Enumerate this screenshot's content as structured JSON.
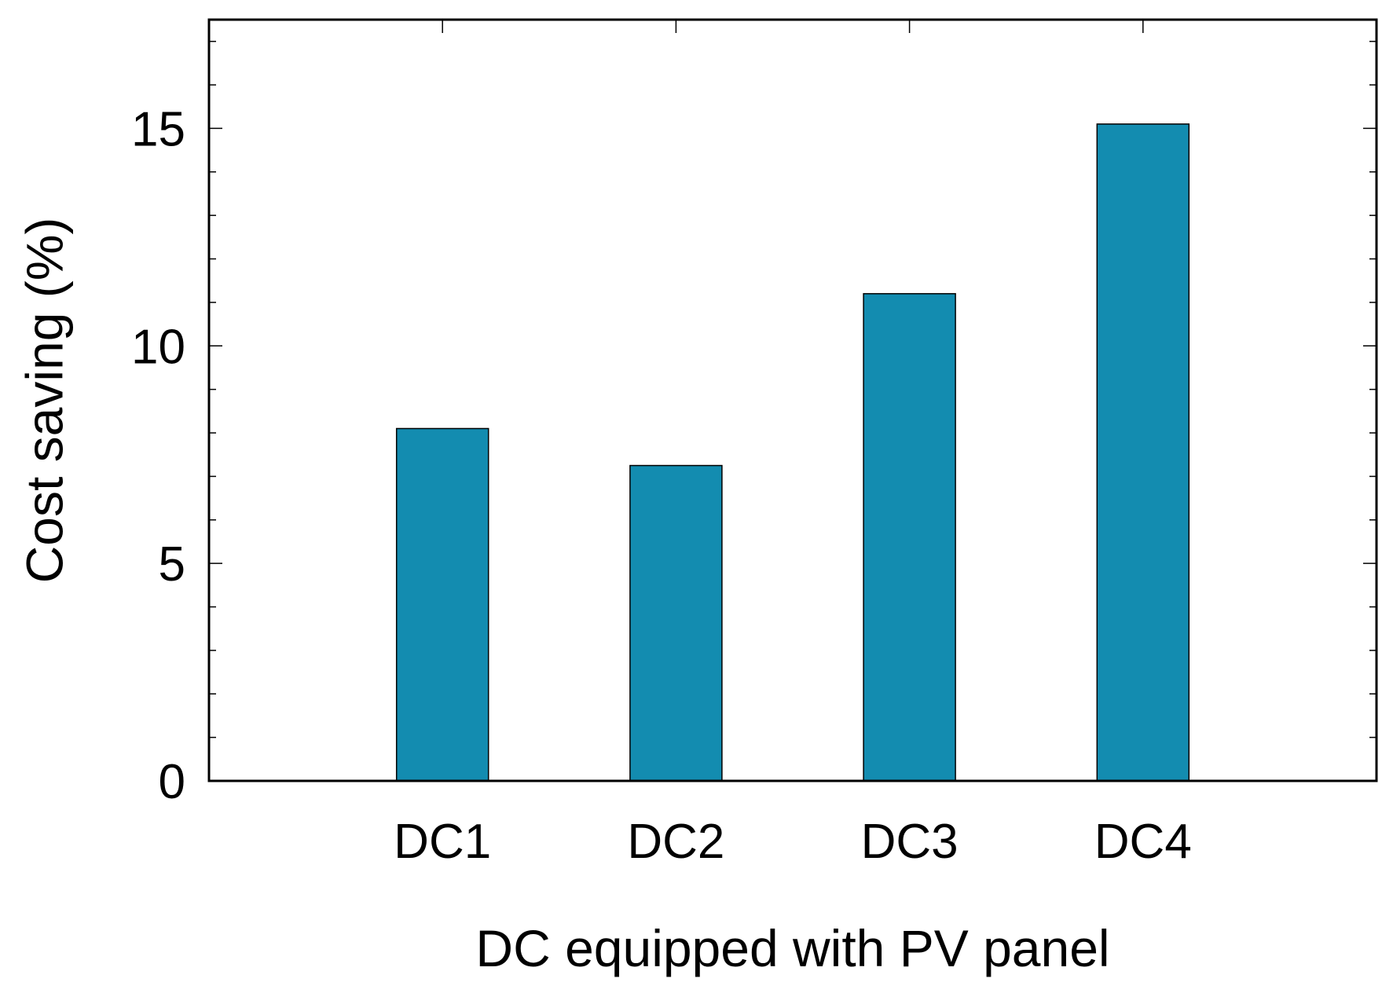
{
  "chart_data": {
    "type": "bar",
    "title": "",
    "xlabel": "DC equipped with PV panel",
    "ylabel": "Cost saving (%)",
    "categories": [
      "DC1",
      "DC2",
      "DC3",
      "DC4"
    ],
    "values": [
      8.1,
      7.25,
      11.2,
      15.1
    ],
    "ylim": [
      0,
      17.5
    ],
    "yticks": [
      0,
      5,
      10,
      15
    ],
    "y_minor_step": 1,
    "grid": false,
    "bar_color": "#138cb0"
  }
}
